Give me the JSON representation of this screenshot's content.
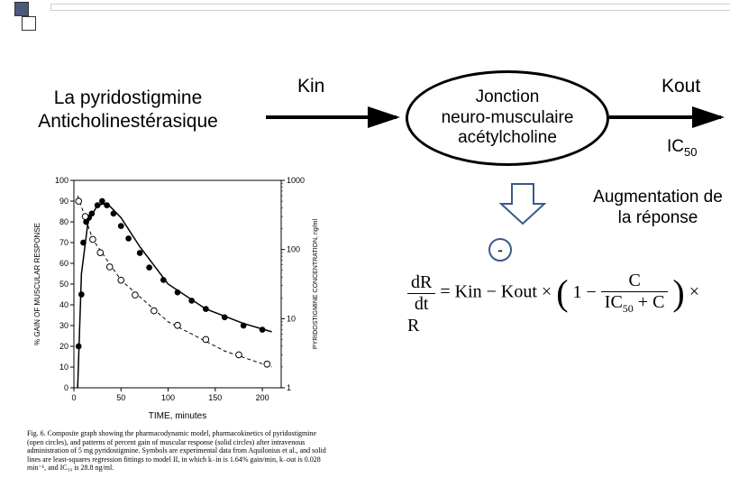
{
  "decoration": {
    "bar_color": "#ffffff",
    "sq_dark_color": "#4a5a7a"
  },
  "labels": {
    "title_line1": "La pyridostigmine",
    "title_line2": "Anticholinestérasique",
    "kin": "Kin",
    "kout": "Kout",
    "ic50": "IC",
    "ic50_sub": "50",
    "ellipse_l1": "Jonction",
    "ellipse_l2": "neuro-musculaire",
    "ellipse_l3": "acétylcholine",
    "augmentation_l1": "Augmentation de",
    "augmentation_l2": "la réponse",
    "minus": "-"
  },
  "formula": {
    "lhs_num": "dR",
    "lhs_den": "dt",
    "eq": " = ",
    "kin": "Kin",
    "minus": " − ",
    "kout": "Kout",
    "times": " × ",
    "one_minus": "1 − ",
    "inner_num": "C",
    "inner_den_a": "IC",
    "inner_den_sub": "50",
    "inner_den_b": " + C",
    "xr": " × R"
  },
  "chart": {
    "background": "#ffffff",
    "axis_color": "#000000",
    "grid_color": "#f0f0f0",
    "font_size_axis": 9,
    "font_size_label": 10,
    "xlabel": "TIME, minutes",
    "ylabel_left": "% GAIN OF MUSCULAR RESPONSE",
    "ylabel_right": "PYRIDOSTIGMINE CONCENTRATION, ng/ml",
    "xlim": [
      0,
      220
    ],
    "xticks": [
      0,
      50,
      100,
      150,
      200
    ],
    "ylim_left": [
      0,
      100
    ],
    "yticks_left": [
      0,
      10,
      20,
      30,
      40,
      50,
      60,
      70,
      80,
      90,
      100
    ],
    "ylim_right_log": [
      1,
      1000
    ],
    "yticks_right": [
      1,
      10,
      100,
      1000
    ],
    "series_solid": {
      "type": "scatter+line",
      "marker": "filled-circle",
      "color": "#000000",
      "marker_size": 4,
      "line_width": 1.5,
      "points": [
        [
          5,
          20
        ],
        [
          8,
          45
        ],
        [
          10,
          70
        ],
        [
          13,
          80
        ],
        [
          16,
          82
        ],
        [
          19,
          84
        ],
        [
          25,
          88
        ],
        [
          30,
          90
        ],
        [
          35,
          88
        ],
        [
          42,
          84
        ],
        [
          50,
          78
        ],
        [
          58,
          72
        ],
        [
          70,
          65
        ],
        [
          80,
          58
        ],
        [
          95,
          52
        ],
        [
          110,
          46
        ],
        [
          125,
          42
        ],
        [
          140,
          38
        ],
        [
          160,
          34
        ],
        [
          180,
          30
        ],
        [
          200,
          28
        ]
      ],
      "curve": [
        [
          4,
          0
        ],
        [
          8,
          55
        ],
        [
          15,
          80
        ],
        [
          25,
          88
        ],
        [
          35,
          89
        ],
        [
          50,
          82
        ],
        [
          70,
          68
        ],
        [
          100,
          50
        ],
        [
          140,
          38
        ],
        [
          180,
          31
        ],
        [
          210,
          27
        ]
      ]
    },
    "series_open": {
      "type": "scatter+dashedline",
      "marker": "open-circle",
      "color": "#000000",
      "marker_size": 4,
      "line_width": 1,
      "points_right_log": [
        [
          5,
          500
        ],
        [
          12,
          300
        ],
        [
          20,
          140
        ],
        [
          28,
          90
        ],
        [
          38,
          56
        ],
        [
          50,
          36
        ],
        [
          65,
          22
        ],
        [
          85,
          13
        ],
        [
          110,
          8
        ],
        [
          140,
          5
        ],
        [
          175,
          3
        ],
        [
          205,
          2.2
        ]
      ],
      "curve_right_log": [
        [
          4,
          600
        ],
        [
          20,
          140
        ],
        [
          50,
          36
        ],
        [
          100,
          9
        ],
        [
          160,
          3.4
        ],
        [
          210,
          2.0
        ]
      ]
    }
  },
  "caption": {
    "text": "Fig. 6. Composite graph showing the pharmacodynamic model, pharmacokinetics of pyridostigmine (open circles), and patterns of percent gain of muscular response (solid circles) after intravenous administration of 5 mg pyridostigmine. Symbols are experimental data from Aquilonius et al., and solid lines are least-squares regression fittings to model II, in which k₋in is 1.64% gain/min, k₋out is 0.028 min⁻¹, and IC₅₀ is 28.8 ng/ml."
  },
  "arrows": {
    "color": "#000000",
    "stroke": 3,
    "down_arrow_color": "#3a5a8a"
  }
}
